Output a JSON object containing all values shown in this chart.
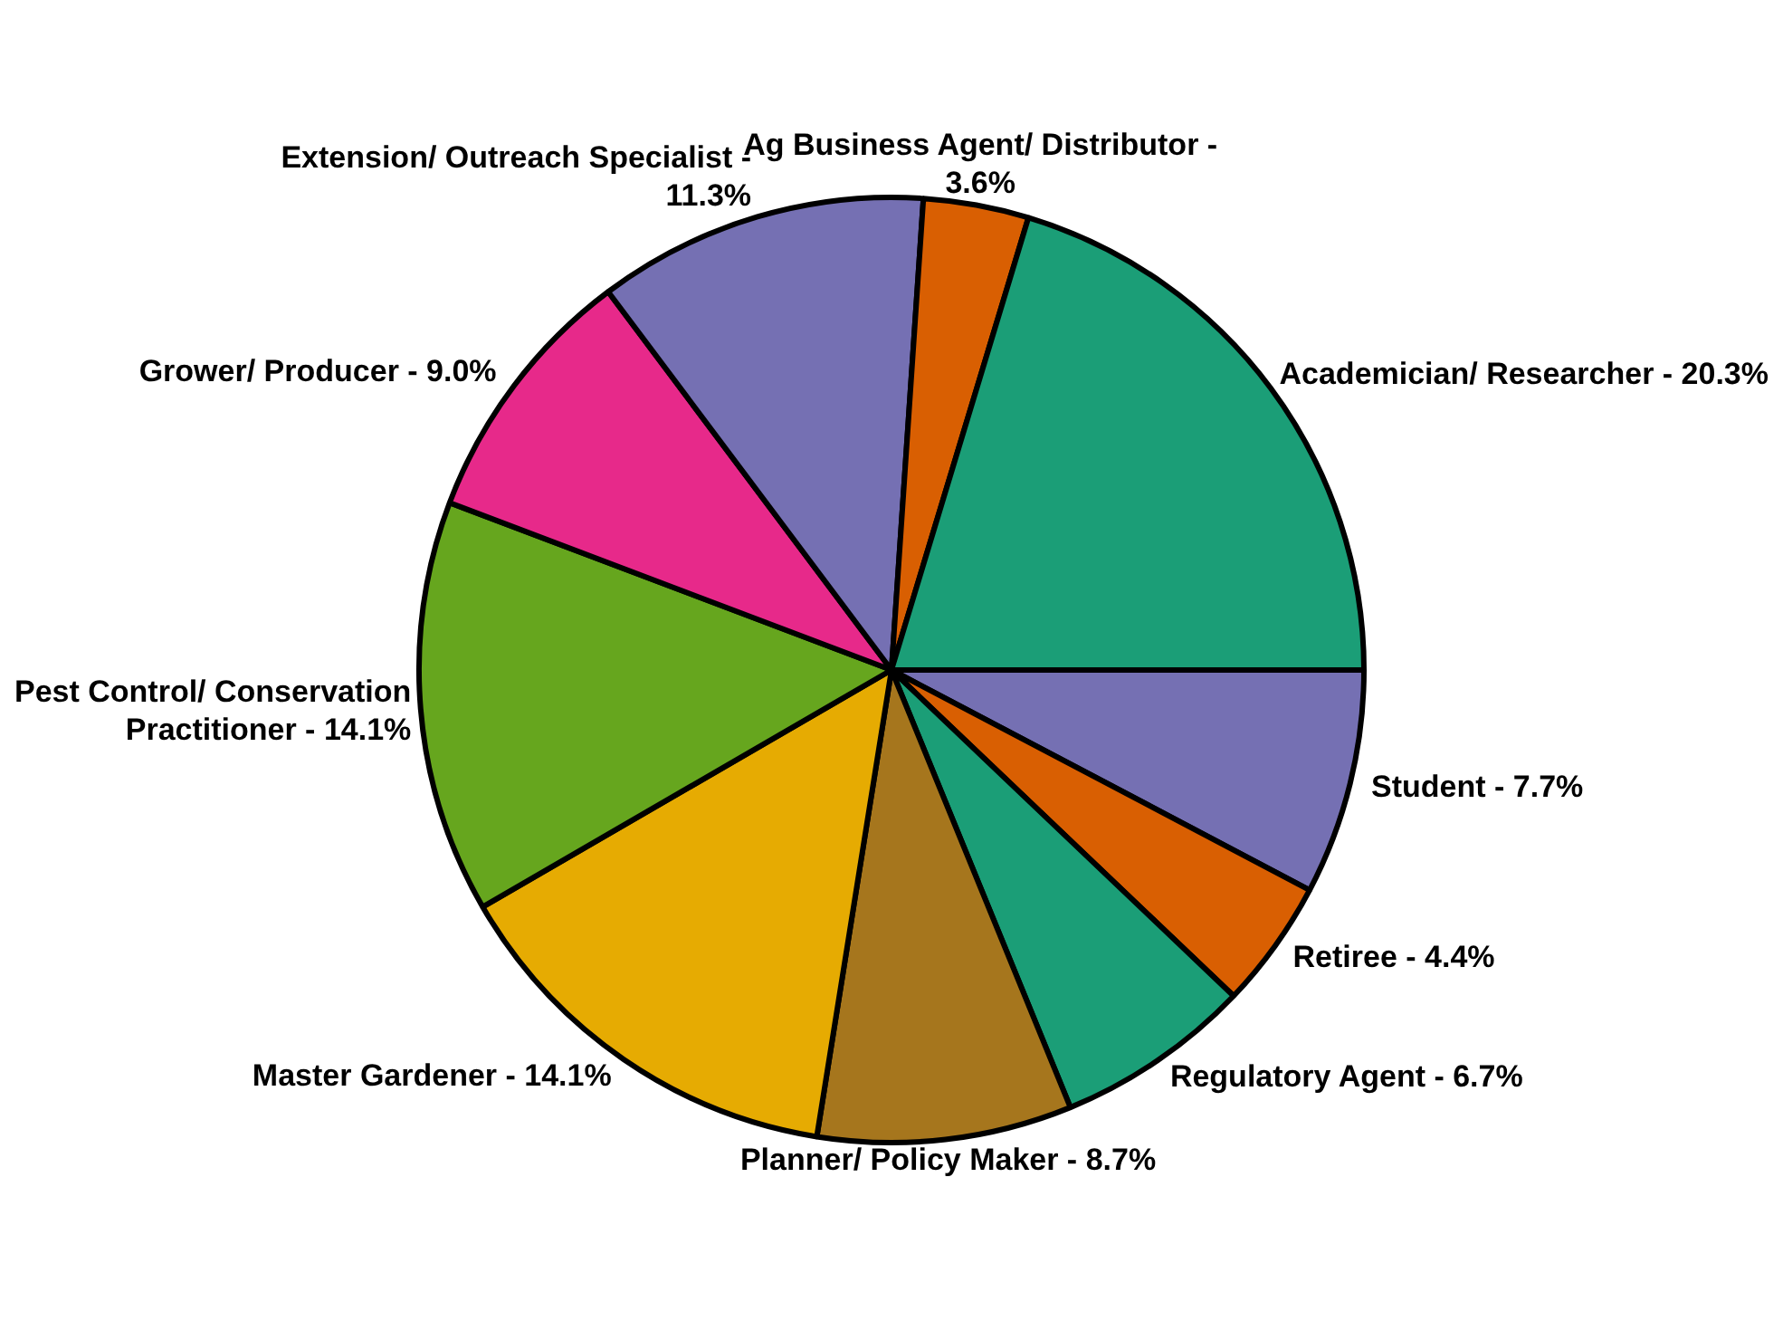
{
  "chart_data": {
    "type": "pie",
    "categories": [
      "Student -",
      "Retiree -",
      "Regulatory Agent -",
      "Planner/ Policy Maker -",
      "Master Gardener -",
      "Pest Control/ Conservation Practitioner -",
      "Grower/ Producer -",
      "Extension/ Outreach Specialist -",
      "Ag Business Agent/ Distributor -",
      "Academician/ Researcher -"
    ],
    "values": [
      7.7,
      4.4,
      6.7,
      8.7,
      14.1,
      14.1,
      9.0,
      11.3,
      3.6,
      20.3
    ],
    "value_labels": [
      "7.7%",
      "4.4%",
      "6.7%",
      "8.7%",
      "14.1%",
      "14.1%",
      "9.0%",
      "11.3%",
      "3.6%",
      "20.3%"
    ],
    "colors": [
      "#7570b3",
      "#d95f02",
      "#1b9e77",
      "#a6761d",
      "#e6ab02",
      "#66a61e",
      "#e7298a",
      "#7570b3",
      "#d95f02",
      "#1b9e77"
    ],
    "legend": false
  }
}
